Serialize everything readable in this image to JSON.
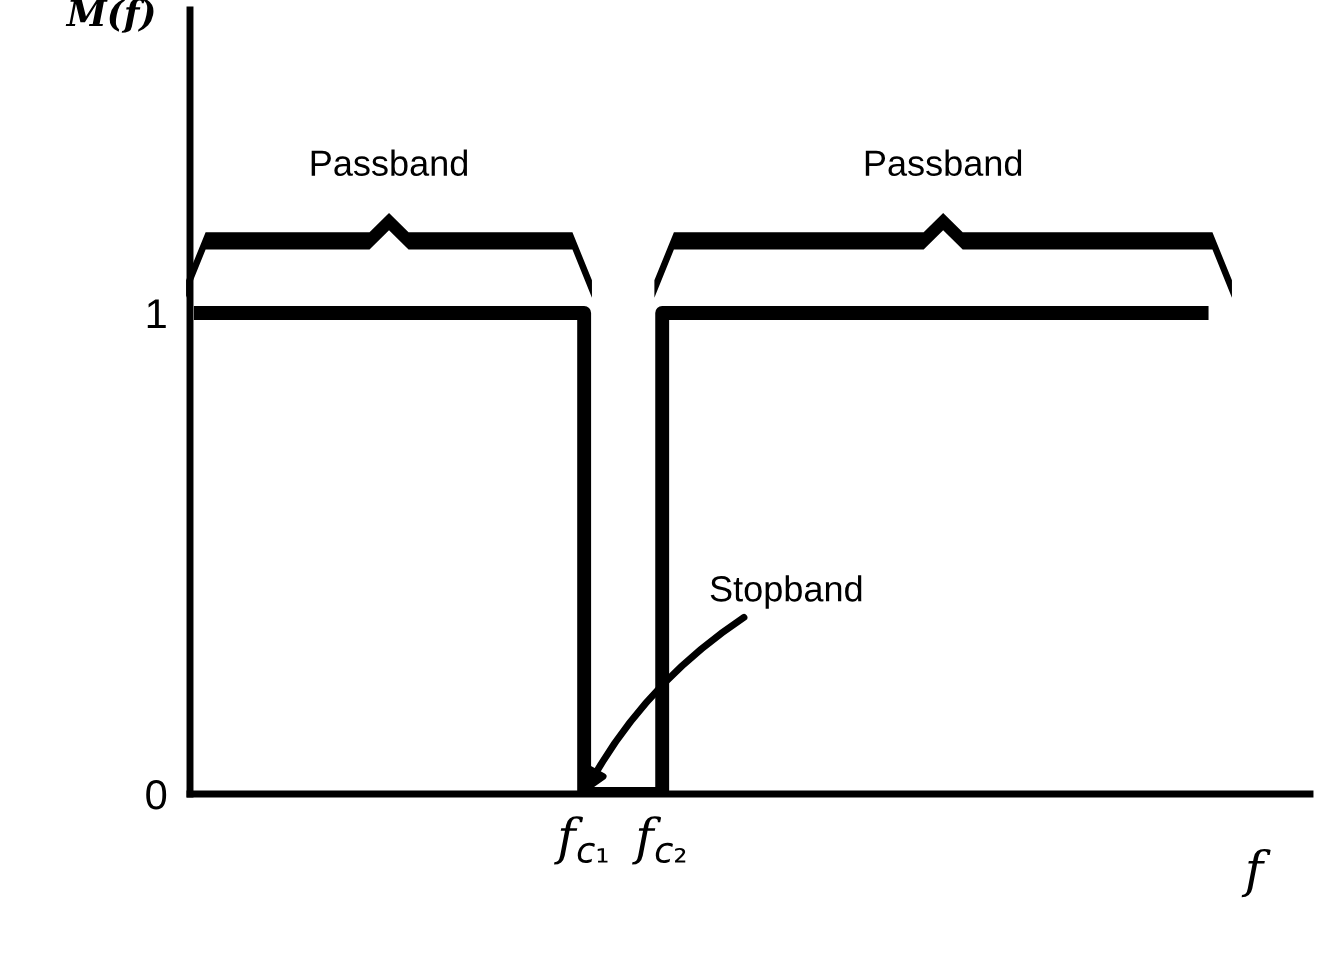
{
  "chart_data": {
    "type": "step",
    "ylabel": "M(f)",
    "xlabel": "f",
    "categories": [
      null,
      null,
      null,
      null,
      null,
      "f$_{c₁}$",
      "f$_{c₂}$",
      null,
      null,
      null,
      null,
      null,
      null,
      null
    ],
    "series": [
      {
        "color": "#000000",
        "values": [
          1,
          1,
          1,
          1,
          1,
          0,
          1,
          1,
          1,
          1,
          1,
          1,
          1,
          1
        ]
      }
    ],
    "ylim": [
      0,
      1.63
    ],
    "yticks": [
      0,
      1
    ],
    "annotations": [
      "Passband",
      "Passband",
      {
        "text": "Stopband",
        "x": "f$_{c₁}$",
        "y": 0
      }
    ],
    "grid": false,
    "legend": false,
    "marker": "none",
    "line_style": "solid"
  }
}
